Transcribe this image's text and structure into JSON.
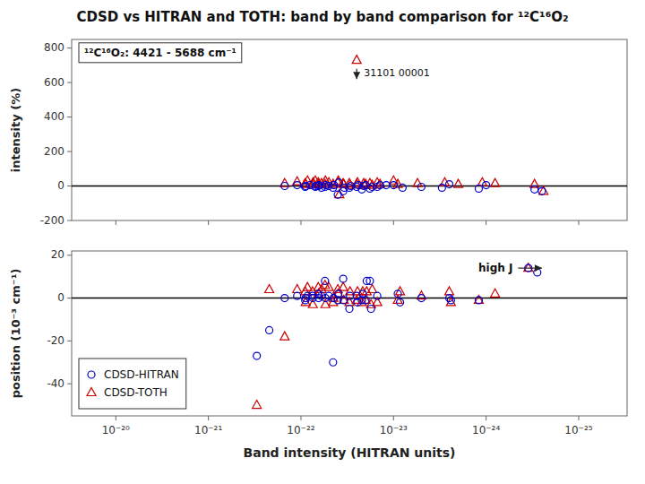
{
  "chart_data": [
    {
      "type": "scatter",
      "title": "CDSD vs HITRAN and TOTH: band by band comparison for ¹²C¹⁶O₂",
      "ylabel": "intensity (%)",
      "log": "x",
      "xlim": [
        3e-20,
        3e-26
      ],
      "ylim": [
        -200,
        850
      ],
      "xticks": [
        1e-25,
        1e-24,
        1e-23,
        1e-22,
        1e-21,
        1e-20
      ],
      "yticks": [
        -200,
        0,
        200,
        400,
        600,
        800
      ],
      "tick_labels": "y",
      "grid": false,
      "hline": 0,
      "series": [
        {
          "color": "#0000cc",
          "marker": "circle",
          "x": [
            3e-25,
            2.5e-25,
            1.2e-24,
            1e-24,
            3e-24,
            2.5e-24,
            5e-24,
            1e-23,
            8e-24,
            1.2e-23,
            1.5e-23,
            1.4e-23,
            1.8e-23,
            1.7e-23,
            2e-23,
            2.2e-23,
            2.1e-23,
            2.5e-23,
            2.4e-23,
            3e-23,
            2.9e-23,
            3.5e-23,
            3.4e-23,
            4e-23,
            3.9e-23,
            4.5e-23,
            4.4e-23,
            5e-23,
            5.5e-23,
            5.4e-23,
            6e-23,
            6.5e-23,
            6.4e-23,
            7e-23,
            6.9e-23,
            8e-23,
            9e-23,
            8.9e-23,
            1.1e-22,
            1.5e-22
          ],
          "values": [
            -20,
            -30,
            -15,
            5,
            -10,
            10,
            -5,
            5,
            -10,
            5,
            -5,
            5,
            -15,
            -5,
            5,
            -20,
            0,
            -5,
            5,
            -10,
            0,
            -30,
            -10,
            -50,
            20,
            -10,
            5,
            0,
            -5,
            5,
            -10,
            0,
            5,
            -5,
            0,
            5,
            -5,
            0,
            5,
            0
          ]
        },
        {
          "color": "#cc0000",
          "marker": "triangle",
          "x": [
            3e-25,
            2.4e-25,
            8e-25,
            1.1e-24,
            2e-24,
            2.8e-24,
            5.5e-24,
            1e-23,
            9e-24,
            1.5e-23,
            1.4e-23,
            1.8e-23,
            1.7e-23,
            2e-23,
            2.1e-23,
            2.05e-23,
            2.5e-23,
            2.45e-23,
            3e-23,
            2.95e-23,
            3.5e-23,
            3.45e-23,
            4e-23,
            3.95e-23,
            3.85e-23,
            4.5e-23,
            5e-23,
            5.5e-23,
            5.45e-23,
            6e-23,
            6.5e-23,
            6.45e-23,
            7e-23,
            7.5e-23,
            7.4e-23,
            8.5e-23,
            9e-23,
            8.9e-23,
            1.1e-22,
            1.5e-22,
            2.5e-23
          ],
          "values": [
            10,
            -30,
            15,
            20,
            10,
            20,
            15,
            30,
            10,
            20,
            10,
            15,
            5,
            10,
            15,
            5,
            10,
            20,
            15,
            5,
            15,
            10,
            20,
            30,
            -50,
            10,
            20,
            10,
            30,
            15,
            20,
            10,
            30,
            10,
            20,
            30,
            15,
            10,
            25,
            15,
            730
          ]
        }
      ],
      "annotations": [
        {
          "text": "¹²C¹⁶O₂: 4421 - 5688 cm⁻¹"
        },
        {
          "text": "31101 00001",
          "from": [
            2.5e-23,
            680
          ],
          "to": [
            2.5e-23,
            620
          ]
        }
      ]
    },
    {
      "type": "scatter",
      "xlabel": "Band intensity (HITRAN units)",
      "ylabel": "position (10⁻³ cm⁻¹)",
      "log": "x",
      "xlim": [
        3e-20,
        3e-26
      ],
      "ylim": [
        -55,
        22
      ],
      "xticks": [
        {
          "value": 1e-25,
          "label": "10⁻²⁵"
        },
        {
          "value": 1e-24,
          "label": "10⁻²⁴"
        },
        {
          "value": 1e-23,
          "label": "10⁻²³"
        },
        {
          "value": 1e-22,
          "label": "10⁻²²"
        },
        {
          "value": 1e-21,
          "label": "10⁻²¹"
        },
        {
          "value": 1e-20,
          "label": "10⁻²⁰"
        }
      ],
      "yticks": [
        -40,
        -20,
        0,
        20
      ],
      "grid": false,
      "hline": 0,
      "legend": "lower left",
      "series": [
        {
          "name": "CDSD-HITRAN",
          "color": "#0000cc",
          "marker": "circle",
          "x": [
            3.5e-25,
            2.8e-25,
            1.2e-24,
            2.5e-24,
            2.4e-24,
            5e-24,
            9e-24,
            8.5e-24,
            1.5e-23,
            1.8e-23,
            1.75e-23,
            2e-23,
            1.95e-23,
            2.2e-23,
            2.15e-23,
            2.5e-23,
            2.45e-23,
            3e-23,
            2.95e-23,
            3.5e-23,
            3.45e-23,
            4e-23,
            3.95e-23,
            4.5e-23,
            4.45e-23,
            5e-23,
            5.5e-23,
            5.45e-23,
            6e-23,
            6.5e-23,
            6.45e-23,
            7.5e-23,
            7.45e-23,
            8.5e-23,
            9e-23,
            8.9e-23,
            1.1e-22,
            1.5e-22,
            2.2e-22,
            3e-22
          ],
          "values": [
            14,
            12,
            -1,
            0,
            -1,
            0,
            2,
            -2,
            1,
            8,
            -5,
            -1,
            8,
            -1,
            2,
            1,
            -2,
            -5,
            1,
            9,
            -1,
            -1,
            2,
            -30,
            0,
            1,
            8,
            0,
            1,
            2,
            0,
            1,
            0,
            1,
            -1,
            0,
            1,
            0,
            -15,
            -27
          ]
        },
        {
          "name": "CDSD-TOTH",
          "color": "#cc0000",
          "marker": "triangle",
          "x": [
            3.5e-25,
            1.2e-24,
            2.5e-24,
            2.4e-24,
            5e-24,
            9e-24,
            8.5e-24,
            1.5e-23,
            1.75e-23,
            1.7e-23,
            2e-23,
            1.95e-23,
            2.2e-23,
            2.15e-23,
            2.5e-23,
            2.45e-23,
            3e-23,
            2.95e-23,
            3.5e-23,
            3.45e-23,
            4e-23,
            3.95e-23,
            4.5e-23,
            4.45e-23,
            5e-23,
            5.5e-23,
            5.45e-23,
            6e-23,
            6.5e-23,
            6.45e-23,
            7.5e-23,
            7.45e-23,
            8.5e-23,
            9e-23,
            8.9e-23,
            1.1e-22,
            1.5e-22,
            2.2e-22,
            3e-22,
            8e-25
          ],
          "values": [
            14,
            -1,
            3,
            -2,
            1,
            -1,
            3,
            -2,
            -3,
            4,
            -1,
            3,
            -2,
            3,
            -1,
            3,
            -2,
            3,
            5,
            -1,
            4,
            2,
            -2,
            0,
            5,
            6,
            -3,
            4,
            5,
            2,
            3,
            -3,
            5,
            3,
            -2,
            4,
            -18,
            4,
            -50,
            2
          ]
        }
      ],
      "annotations": [
        {
          "text": "high J",
          "from": [
            4.5e-25,
            14
          ],
          "to": [
            2.5e-25,
            14
          ]
        }
      ]
    }
  ]
}
